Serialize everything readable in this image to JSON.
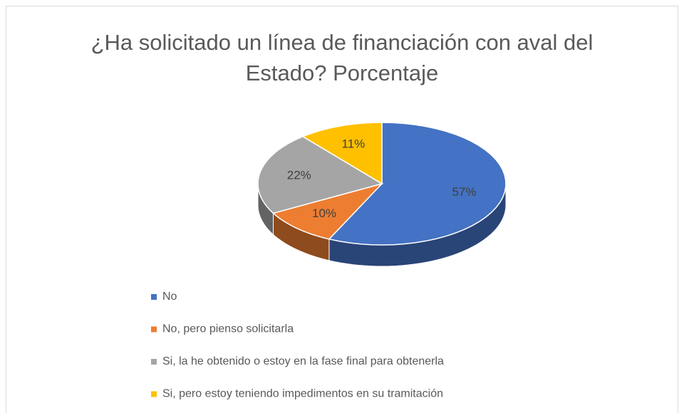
{
  "chart_data": {
    "type": "pie",
    "title": "¿Ha solicitado un línea de financiación con aval del Estado? Porcentaje",
    "categories": [
      "No",
      "No, pero pienso solicitarla",
      "Si, la he obtenido o estoy en la fase final para obtenerla",
      "Si, pero estoy teniendo impedimentos en su tramitación"
    ],
    "values": [
      57,
      10,
      22,
      11
    ],
    "value_labels": [
      "57%",
      "10%",
      "22%",
      "11%"
    ],
    "colors": [
      "#4472c4",
      "#ed7d31",
      "#a5a5a5",
      "#ffc000"
    ],
    "legend": "bottom"
  }
}
